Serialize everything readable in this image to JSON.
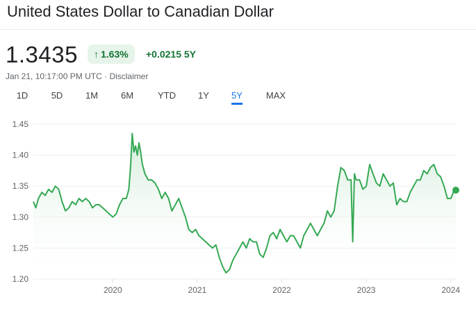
{
  "header": {
    "title": "United States Dollar to Canadian Dollar",
    "price": "1.3435",
    "percent_change": "1.63%",
    "abs_change": "+0.0215 5Y",
    "timestamp": "Jan 21, 10:17:00 PM UTC",
    "separator": "·",
    "disclaimer": "Disclaimer",
    "up_icon": "arrow-up-icon"
  },
  "ranges": [
    {
      "label": "1D"
    },
    {
      "label": "5D"
    },
    {
      "label": "1M"
    },
    {
      "label": "6M"
    },
    {
      "label": "YTD"
    },
    {
      "label": "1Y"
    },
    {
      "label": "5Y"
    },
    {
      "label": "MAX"
    }
  ],
  "active_range": "5Y",
  "colors": {
    "line": "#34a853",
    "area_top": "#ceead6",
    "positive_text": "#137333",
    "active_tab": "#1a73e8",
    "grid": "#eeeeee"
  },
  "chart_data": {
    "type": "line",
    "title": "",
    "xlabel": "",
    "ylabel": "",
    "ylim": [
      1.2,
      1.45
    ],
    "xlim": [
      2019.06,
      2024.06
    ],
    "yticks": [
      "1.45",
      "1.40",
      "1.35",
      "1.30",
      "1.25",
      "1.20"
    ],
    "xticks": [
      "2020",
      "2021",
      "2022",
      "2023",
      "2024"
    ],
    "grid": "horizontal",
    "last_point_marker": true,
    "series": [
      {
        "x": [
          2019.06,
          2019.09,
          2019.12,
          2019.16,
          2019.2,
          2019.24,
          2019.28,
          2019.32,
          2019.36,
          2019.4,
          2019.44,
          2019.48,
          2019.52,
          2019.56,
          2019.6,
          2019.64,
          2019.68,
          2019.72,
          2019.76,
          2019.8,
          2019.84,
          2019.88,
          2019.92,
          2019.96,
          2020.0,
          2020.04,
          2020.08,
          2020.12,
          2020.16,
          2020.19,
          2020.21,
          2020.23,
          2020.25,
          2020.27,
          2020.29,
          2020.31,
          2020.33,
          2020.35,
          2020.38,
          2020.42,
          2020.46,
          2020.5,
          2020.54,
          2020.58,
          2020.62,
          2020.66,
          2020.7,
          2020.74,
          2020.78,
          2020.82,
          2020.86,
          2020.9,
          2020.94,
          2020.98,
          2021.02,
          2021.06,
          2021.1,
          2021.14,
          2021.18,
          2021.22,
          2021.26,
          2021.3,
          2021.34,
          2021.38,
          2021.42,
          2021.46,
          2021.5,
          2021.54,
          2021.58,
          2021.62,
          2021.66,
          2021.7,
          2021.74,
          2021.78,
          2021.82,
          2021.86,
          2021.9,
          2021.94,
          2021.98,
          2022.02,
          2022.06,
          2022.1,
          2022.14,
          2022.18,
          2022.22,
          2022.26,
          2022.3,
          2022.34,
          2022.38,
          2022.42,
          2022.46,
          2022.5,
          2022.54,
          2022.58,
          2022.62,
          2022.66,
          2022.7,
          2022.74,
          2022.78,
          2022.82,
          2022.84,
          2022.86,
          2022.88,
          2022.92,
          2022.96,
          2023.0,
          2023.04,
          2023.08,
          2023.12,
          2023.16,
          2023.2,
          2023.24,
          2023.28,
          2023.32,
          2023.36,
          2023.4,
          2023.44,
          2023.48,
          2023.52,
          2023.56,
          2023.6,
          2023.64,
          2023.68,
          2023.72,
          2023.76,
          2023.8,
          2023.84,
          2023.88,
          2023.92,
          2023.96,
          2024.0,
          2024.03,
          2024.06
        ],
        "y": [
          1.325,
          1.315,
          1.33,
          1.34,
          1.335,
          1.345,
          1.34,
          1.35,
          1.345,
          1.325,
          1.31,
          1.315,
          1.325,
          1.32,
          1.33,
          1.325,
          1.33,
          1.325,
          1.315,
          1.32,
          1.32,
          1.315,
          1.31,
          1.305,
          1.3,
          1.305,
          1.32,
          1.33,
          1.33,
          1.345,
          1.38,
          1.435,
          1.405,
          1.415,
          1.4,
          1.42,
          1.405,
          1.385,
          1.37,
          1.36,
          1.36,
          1.355,
          1.345,
          1.33,
          1.34,
          1.33,
          1.31,
          1.32,
          1.33,
          1.315,
          1.3,
          1.28,
          1.275,
          1.28,
          1.27,
          1.265,
          1.26,
          1.255,
          1.25,
          1.255,
          1.235,
          1.22,
          1.21,
          1.215,
          1.23,
          1.24,
          1.25,
          1.26,
          1.25,
          1.265,
          1.26,
          1.26,
          1.24,
          1.235,
          1.25,
          1.27,
          1.275,
          1.265,
          1.28,
          1.27,
          1.26,
          1.27,
          1.27,
          1.26,
          1.25,
          1.27,
          1.28,
          1.29,
          1.28,
          1.27,
          1.28,
          1.29,
          1.31,
          1.3,
          1.31,
          1.35,
          1.38,
          1.375,
          1.36,
          1.36,
          1.26,
          1.37,
          1.36,
          1.36,
          1.345,
          1.35,
          1.385,
          1.37,
          1.355,
          1.35,
          1.37,
          1.36,
          1.35,
          1.355,
          1.32,
          1.33,
          1.325,
          1.325,
          1.34,
          1.35,
          1.36,
          1.36,
          1.375,
          1.37,
          1.38,
          1.385,
          1.37,
          1.365,
          1.35,
          1.33,
          1.33,
          1.34,
          1.3435
        ]
      }
    ]
  }
}
